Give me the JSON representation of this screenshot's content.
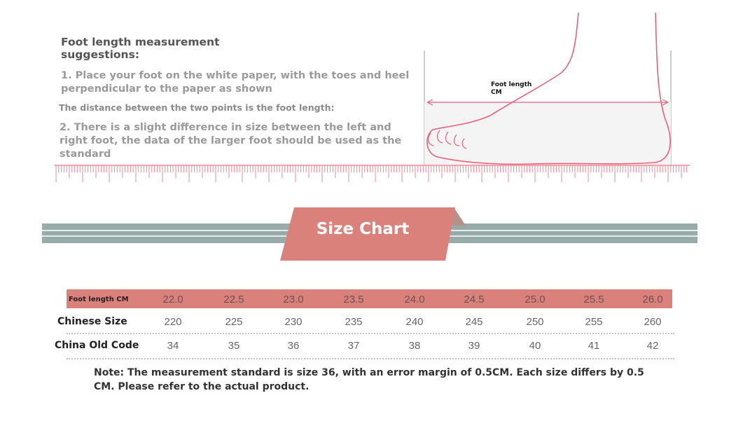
{
  "instructions": {
    "title": "Foot length measurement suggestions:",
    "step1": "1. Place your foot on the white paper, with the toes and heel perpendicular to the paper as shown",
    "distance_note": "The distance between the two points is the foot length:",
    "step2": "2. There is a slight difference in size between the left and right foot, the data of the larger foot should be used as the standard"
  },
  "diagram": {
    "label_line1": "Foot length",
    "label_line2": "CM",
    "color": "#e8607a"
  },
  "banner": {
    "title": "Size Chart",
    "tag_color": "#d9817a",
    "stripe_color": "#97aca8"
  },
  "table": {
    "rows": [
      {
        "label": "Foot length CM",
        "values": [
          "22.0",
          "22.5",
          "23.0",
          "23.5",
          "24.0",
          "24.5",
          "25.0",
          "25.5",
          "26.0"
        ]
      },
      {
        "label": "Chinese Size",
        "values": [
          "220",
          "225",
          "230",
          "235",
          "240",
          "245",
          "250",
          "255",
          "260"
        ]
      },
      {
        "label": "China Old Code",
        "values": [
          "34",
          "35",
          "36",
          "37",
          "38",
          "39",
          "40",
          "41",
          "42"
        ]
      }
    ]
  },
  "note": "Note: The measurement standard is size 36, with an error margin of 0.5CM. Each size differs by 0.5 CM. Please refer to the actual product."
}
